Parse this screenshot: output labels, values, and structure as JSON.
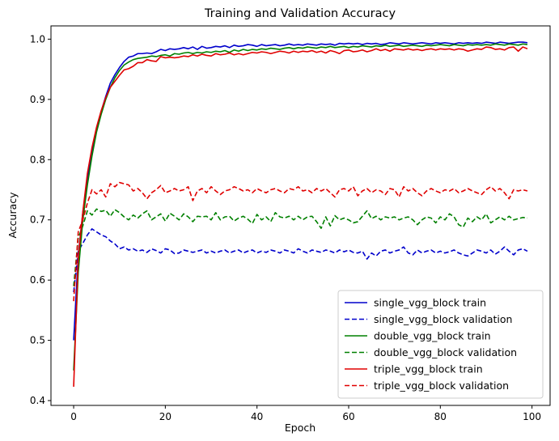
{
  "chart_data": {
    "type": "line",
    "title": "Training and Validation Accuracy",
    "xlabel": "Epoch",
    "ylabel": "Accuracy",
    "xlim": [
      -4.95,
      103.95
    ],
    "ylim": [
      0.392,
      1.022
    ],
    "x_ticks": [
      0,
      20,
      40,
      60,
      80,
      100
    ],
    "y_ticks": [
      0.4,
      0.5,
      0.6,
      0.7,
      0.8,
      0.9,
      1.0
    ],
    "y_tick_labels": [
      "0.4",
      "0.5",
      "0.6",
      "0.7",
      "0.8",
      "0.9",
      "1.0"
    ],
    "grid": false,
    "legend_position": "lower-right",
    "x": [
      0,
      1,
      2,
      3,
      4,
      5,
      6,
      7,
      8,
      9,
      10,
      11,
      12,
      13,
      14,
      15,
      16,
      17,
      18,
      19,
      20,
      21,
      22,
      23,
      24,
      25,
      26,
      27,
      28,
      29,
      30,
      31,
      32,
      33,
      34,
      35,
      36,
      37,
      38,
      39,
      40,
      41,
      42,
      43,
      44,
      45,
      46,
      47,
      48,
      49,
      50,
      51,
      52,
      53,
      54,
      55,
      56,
      57,
      58,
      59,
      60,
      61,
      62,
      63,
      64,
      65,
      66,
      67,
      68,
      69,
      70,
      71,
      72,
      73,
      74,
      75,
      76,
      77,
      78,
      79,
      80,
      81,
      82,
      83,
      84,
      85,
      86,
      87,
      88,
      89,
      90,
      91,
      92,
      93,
      94,
      95,
      96,
      97,
      98,
      99
    ],
    "series": [
      {
        "name": "single_vgg_block train",
        "color": "#0000cc",
        "dash": "solid",
        "values": [
          0.5,
          0.641,
          0.712,
          0.768,
          0.811,
          0.852,
          0.88,
          0.905,
          0.927,
          0.941,
          0.953,
          0.963,
          0.97,
          0.972,
          0.976,
          0.976,
          0.977,
          0.976,
          0.979,
          0.983,
          0.981,
          0.984,
          0.983,
          0.984,
          0.986,
          0.984,
          0.987,
          0.983,
          0.988,
          0.985,
          0.986,
          0.988,
          0.987,
          0.989,
          0.986,
          0.99,
          0.988,
          0.989,
          0.991,
          0.99,
          0.988,
          0.991,
          0.989,
          0.99,
          0.991,
          0.989,
          0.99,
          0.992,
          0.99,
          0.991,
          0.99,
          0.992,
          0.991,
          0.99,
          0.992,
          0.991,
          0.992,
          0.99,
          0.993,
          0.992,
          0.993,
          0.992,
          0.993,
          0.991,
          0.993,
          0.992,
          0.993,
          0.991,
          0.992,
          0.994,
          0.993,
          0.992,
          0.994,
          0.993,
          0.992,
          0.993,
          0.994,
          0.993,
          0.992,
          0.994,
          0.993,
          0.994,
          0.993,
          0.992,
          0.994,
          0.993,
          0.994,
          0.993,
          0.994,
          0.993,
          0.995,
          0.994,
          0.993,
          0.995,
          0.994,
          0.993,
          0.994,
          0.995,
          0.995,
          0.994
        ]
      },
      {
        "name": "single_vgg_block validation",
        "color": "#0000cc",
        "dash": "dashed",
        "values": [
          0.58,
          0.648,
          0.661,
          0.675,
          0.685,
          0.68,
          0.675,
          0.672,
          0.665,
          0.66,
          0.652,
          0.655,
          0.65,
          0.652,
          0.648,
          0.65,
          0.646,
          0.652,
          0.649,
          0.645,
          0.652,
          0.65,
          0.644,
          0.645,
          0.65,
          0.648,
          0.646,
          0.648,
          0.65,
          0.645,
          0.648,
          0.645,
          0.648,
          0.65,
          0.645,
          0.648,
          0.65,
          0.645,
          0.648,
          0.65,
          0.645,
          0.648,
          0.646,
          0.65,
          0.648,
          0.645,
          0.65,
          0.648,
          0.645,
          0.652,
          0.648,
          0.645,
          0.65,
          0.648,
          0.646,
          0.65,
          0.648,
          0.645,
          0.65,
          0.647,
          0.65,
          0.646,
          0.645,
          0.648,
          0.635,
          0.645,
          0.64,
          0.648,
          0.65,
          0.645,
          0.648,
          0.65,
          0.655,
          0.645,
          0.642,
          0.65,
          0.645,
          0.648,
          0.65,
          0.645,
          0.648,
          0.645,
          0.647,
          0.65,
          0.645,
          0.642,
          0.64,
          0.645,
          0.65,
          0.648,
          0.645,
          0.65,
          0.643,
          0.648,
          0.655,
          0.648,
          0.642,
          0.65,
          0.652,
          0.648
        ]
      },
      {
        "name": "double_vgg_block train",
        "color": "#008000",
        "dash": "solid",
        "values": [
          0.45,
          0.612,
          0.7,
          0.758,
          0.806,
          0.846,
          0.875,
          0.9,
          0.92,
          0.936,
          0.948,
          0.957,
          0.962,
          0.966,
          0.968,
          0.969,
          0.97,
          0.972,
          0.971,
          0.973,
          0.974,
          0.972,
          0.976,
          0.975,
          0.977,
          0.978,
          0.976,
          0.978,
          0.977,
          0.979,
          0.978,
          0.98,
          0.979,
          0.981,
          0.978,
          0.982,
          0.98,
          0.983,
          0.981,
          0.983,
          0.982,
          0.984,
          0.983,
          0.985,
          0.984,
          0.983,
          0.985,
          0.986,
          0.984,
          0.986,
          0.985,
          0.987,
          0.986,
          0.985,
          0.987,
          0.986,
          0.988,
          0.986,
          0.987,
          0.988,
          0.986,
          0.988,
          0.987,
          0.989,
          0.988,
          0.987,
          0.989,
          0.988,
          0.99,
          0.988,
          0.989,
          0.99,
          0.988,
          0.989,
          0.99,
          0.989,
          0.988,
          0.99,
          0.989,
          0.99,
          0.991,
          0.99,
          0.989,
          0.991,
          0.99,
          0.989,
          0.991,
          0.99,
          0.991,
          0.99,
          0.991,
          0.99,
          0.992,
          0.991,
          0.99,
          0.992,
          0.991,
          0.99,
          0.992,
          0.991
        ]
      },
      {
        "name": "double_vgg_block validation",
        "color": "#008000",
        "dash": "dashed",
        "values": [
          0.59,
          0.67,
          0.69,
          0.715,
          0.708,
          0.718,
          0.714,
          0.716,
          0.706,
          0.717,
          0.712,
          0.705,
          0.7,
          0.708,
          0.703,
          0.71,
          0.715,
          0.7,
          0.705,
          0.71,
          0.698,
          0.711,
          0.706,
          0.7,
          0.71,
          0.705,
          0.697,
          0.706,
          0.705,
          0.706,
          0.7,
          0.712,
          0.7,
          0.705,
          0.706,
          0.698,
          0.703,
          0.706,
          0.701,
          0.694,
          0.709,
          0.7,
          0.705,
          0.697,
          0.712,
          0.705,
          0.703,
          0.706,
          0.7,
          0.706,
          0.7,
          0.705,
          0.706,
          0.697,
          0.686,
          0.705,
          0.69,
          0.707,
          0.7,
          0.703,
          0.7,
          0.695,
          0.697,
          0.706,
          0.715,
          0.702,
          0.706,
          0.7,
          0.705,
          0.703,
          0.705,
          0.7,
          0.703,
          0.705,
          0.7,
          0.692,
          0.7,
          0.705,
          0.703,
          0.695,
          0.705,
          0.7,
          0.71,
          0.705,
          0.692,
          0.688,
          0.703,
          0.697,
          0.705,
          0.7,
          0.71,
          0.695,
          0.7,
          0.705,
          0.7,
          0.706,
          0.7,
          0.702,
          0.704,
          0.703
        ]
      },
      {
        "name": "triple_vgg_block train",
        "color": "#e00000",
        "dash": "solid",
        "values": [
          0.423,
          0.638,
          0.713,
          0.777,
          0.82,
          0.854,
          0.881,
          0.903,
          0.92,
          0.93,
          0.94,
          0.949,
          0.951,
          0.955,
          0.961,
          0.961,
          0.966,
          0.964,
          0.963,
          0.971,
          0.969,
          0.97,
          0.969,
          0.97,
          0.972,
          0.971,
          0.974,
          0.972,
          0.975,
          0.973,
          0.972,
          0.976,
          0.974,
          0.975,
          0.977,
          0.974,
          0.976,
          0.974,
          0.976,
          0.978,
          0.977,
          0.979,
          0.978,
          0.976,
          0.978,
          0.98,
          0.979,
          0.977,
          0.98,
          0.978,
          0.98,
          0.979,
          0.981,
          0.978,
          0.98,
          0.977,
          0.981,
          0.979,
          0.976,
          0.981,
          0.982,
          0.979,
          0.98,
          0.982,
          0.979,
          0.981,
          0.984,
          0.981,
          0.983,
          0.98,
          0.984,
          0.983,
          0.982,
          0.984,
          0.982,
          0.983,
          0.981,
          0.983,
          0.984,
          0.982,
          0.984,
          0.983,
          0.984,
          0.982,
          0.984,
          0.983,
          0.98,
          0.982,
          0.984,
          0.983,
          0.987,
          0.986,
          0.983,
          0.984,
          0.982,
          0.986,
          0.987,
          0.98,
          0.987,
          0.984
        ]
      },
      {
        "name": "triple_vgg_block validation",
        "color": "#e00000",
        "dash": "dashed",
        "values": [
          0.565,
          0.68,
          0.7,
          0.728,
          0.75,
          0.743,
          0.75,
          0.738,
          0.76,
          0.755,
          0.762,
          0.76,
          0.758,
          0.748,
          0.752,
          0.745,
          0.735,
          0.745,
          0.75,
          0.757,
          0.745,
          0.748,
          0.752,
          0.748,
          0.75,
          0.755,
          0.732,
          0.748,
          0.752,
          0.745,
          0.755,
          0.748,
          0.742,
          0.748,
          0.75,
          0.755,
          0.752,
          0.748,
          0.75,
          0.745,
          0.752,
          0.748,
          0.745,
          0.75,
          0.752,
          0.748,
          0.745,
          0.752,
          0.75,
          0.755,
          0.748,
          0.75,
          0.745,
          0.752,
          0.748,
          0.752,
          0.745,
          0.738,
          0.75,
          0.752,
          0.748,
          0.755,
          0.74,
          0.748,
          0.752,
          0.745,
          0.75,
          0.748,
          0.742,
          0.752,
          0.75,
          0.738,
          0.755,
          0.748,
          0.752,
          0.745,
          0.74,
          0.748,
          0.752,
          0.748,
          0.745,
          0.75,
          0.748,
          0.752,
          0.745,
          0.748,
          0.752,
          0.748,
          0.745,
          0.742,
          0.75,
          0.755,
          0.748,
          0.752,
          0.745,
          0.735,
          0.75,
          0.748,
          0.75,
          0.748
        ]
      }
    ]
  }
}
